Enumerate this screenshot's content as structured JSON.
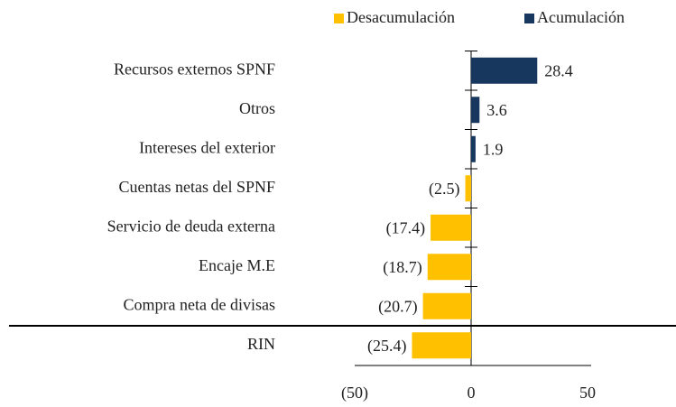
{
  "chart_data": {
    "type": "hbar",
    "categories": [
      "Recursos externos SPNF",
      "Otros",
      "Intereses del exterior",
      "Cuentas netas del SPNF",
      "Servicio de deuda externa",
      "Encaje M.E",
      "Compra neta de divisas",
      "RIN"
    ],
    "series": [
      {
        "name": "Desacumulación",
        "color": "#ffc000",
        "values": [
          null,
          null,
          null,
          -2.5,
          -17.4,
          -18.7,
          -20.7,
          -25.4
        ],
        "value_labels": [
          null,
          null,
          null,
          "(2.5)",
          "(17.4)",
          "(18.7)",
          "(20.7)",
          "(25.4)"
        ]
      },
      {
        "name": "Acumulación",
        "color": "#17375e",
        "values": [
          28.4,
          3.6,
          1.9,
          null,
          null,
          null,
          null,
          null
        ],
        "value_labels": [
          "28.4",
          "3.6",
          "1.9",
          null,
          null,
          null,
          null,
          null
        ]
      }
    ],
    "xlim": [
      -50,
      50
    ],
    "xticks": [
      {
        "value": -50,
        "label": "(50)"
      },
      0,
      50
    ],
    "legend": "top-right"
  }
}
